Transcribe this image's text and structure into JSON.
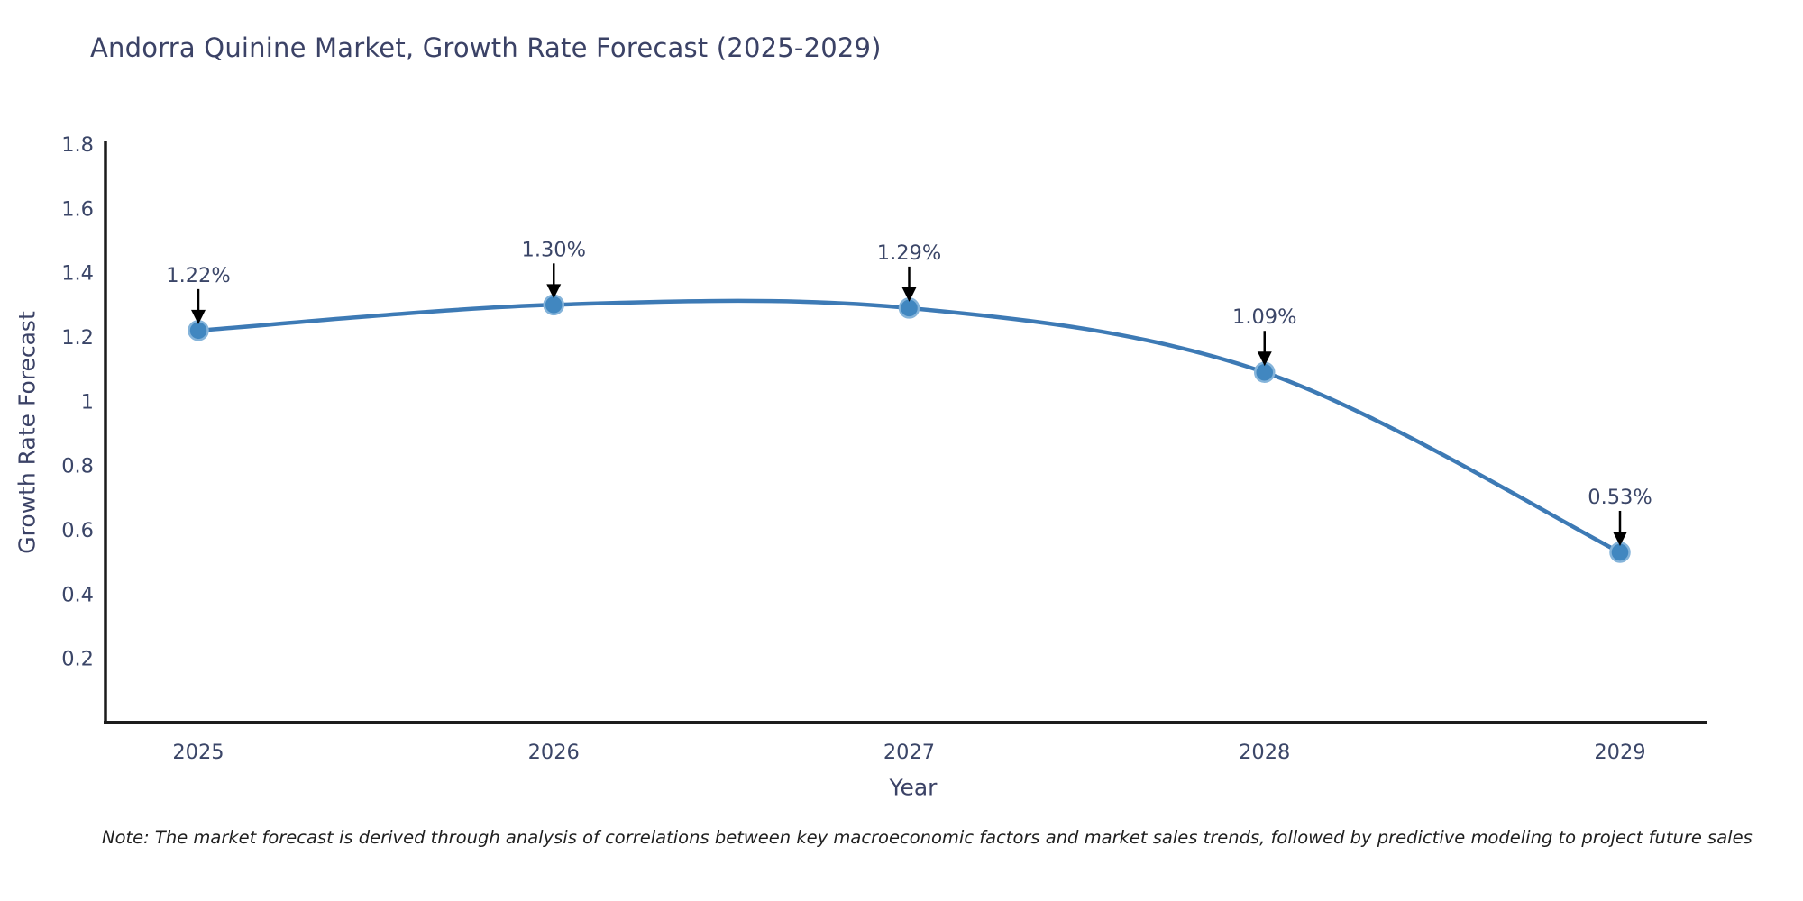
{
  "chart": {
    "note": "Note: The market forecast is derived through analysis of correlations between key macroeconomic factors and market sales trends, followed by predictive modeling to project future sales"
  },
  "chart_data": {
    "type": "line",
    "title": "Andorra Quinine Market, Growth Rate Forecast (2025-2029)",
    "xlabel": "Year",
    "ylabel": "Growth Rate Forecast",
    "x": [
      "2025",
      "2026",
      "2027",
      "2028",
      "2029"
    ],
    "values": [
      1.22,
      1.3,
      1.29,
      1.09,
      0.53
    ],
    "point_labels": [
      "1.22%",
      "1.30%",
      "1.29%",
      "1.09%",
      "0.53%"
    ],
    "ylim": [
      0,
      1.8
    ],
    "y_ticks": [
      1.8,
      1.6,
      1.4,
      1.2,
      1.0,
      0.8,
      0.6,
      0.4,
      0.2
    ],
    "y_tick_labels": [
      "1.8",
      "1.6",
      "1.4",
      "1.2",
      "1",
      "0.8",
      "0.6",
      "0.4",
      "0.2"
    ],
    "grid": false,
    "legend": "none",
    "line_shape": "spline",
    "colors": {
      "line": "#3d7ab5",
      "marker": "#4187c0",
      "marker_edge": "#85b4da",
      "annotation_arrow": "#000000",
      "text": "#3b4668",
      "axis": "#1c1c1c"
    }
  }
}
